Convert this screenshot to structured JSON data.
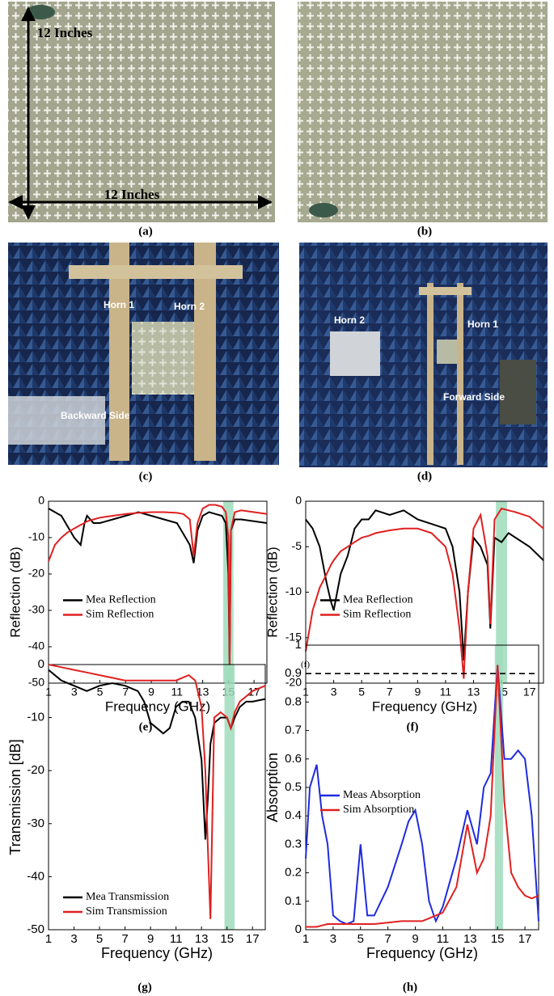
{
  "figures": [
    {
      "caption": "(a)",
      "labels": [
        "12 Inches",
        "12 Inches"
      ]
    },
    {
      "caption": "(b)"
    },
    {
      "caption": "(c)",
      "labels": [
        "Horn 1",
        "Horn 2",
        "Backward Side"
      ]
    },
    {
      "caption": "(d)",
      "labels": [
        "Horn 2",
        "Horn 1",
        "Forward Side"
      ]
    }
  ],
  "chart_data": [
    {
      "type": "line",
      "caption": "(e)",
      "xlabel": "Frequency (GHz)",
      "ylabel": "Reflection (dB)",
      "x": [
        1,
        1.5,
        2,
        2.5,
        3,
        3.5,
        3.8,
        4,
        4.5,
        5,
        6,
        7,
        8,
        9,
        10,
        11,
        11.5,
        12,
        12.3,
        12.6,
        13,
        13.5,
        14,
        14.5,
        14.8,
        15,
        15.1,
        15.2,
        15.5,
        16,
        17,
        18
      ],
      "series": [
        {
          "name": "Mea Reflection",
          "color": "#000000",
          "values": [
            -2,
            -3,
            -4,
            -7,
            -10,
            -12,
            -6,
            -4,
            -6,
            -6,
            -5,
            -4,
            -3,
            -4,
            -5,
            -6,
            -9,
            -12,
            -17,
            -8,
            -4,
            -3,
            -3.5,
            -4,
            -6,
            -20,
            -45,
            -8,
            -5,
            -5,
            -5.5,
            -6
          ]
        },
        {
          "name": "Sim Reflection",
          "color": "#e02020",
          "values": [
            -16.5,
            -12,
            -10,
            -8.5,
            -7.5,
            -6.5,
            -6,
            -5.5,
            -5,
            -4.5,
            -4,
            -3.5,
            -3.2,
            -3,
            -3,
            -3.2,
            -3.5,
            -5,
            -15,
            -6,
            -2,
            -1,
            -1,
            -1.5,
            -3,
            -10,
            -45,
            -8,
            -3,
            -2.5,
            -3,
            -3.5
          ]
        }
      ],
      "xlim": [
        1,
        18
      ],
      "xticks": [
        1,
        3,
        5,
        7,
        9,
        11,
        13,
        15,
        17
      ],
      "ylim": [
        -50,
        0
      ],
      "yticks": [
        -50,
        -40,
        -30,
        -20,
        -10,
        0
      ],
      "highlight": [
        14.6,
        15.4
      ],
      "highlight_color": "#9fdcbc",
      "legend": "center left"
    },
    {
      "type": "line",
      "caption": "(f)",
      "xlabel": "Frequency (GHz)",
      "ylabel": "Reflection (dB)",
      "annotation": "(f)",
      "x": [
        1,
        1.5,
        2,
        2.5,
        2.8,
        3,
        3.5,
        4,
        4.5,
        5,
        5.5,
        6,
        7,
        8,
        9,
        10,
        11,
        11.5,
        12,
        12.3,
        12.6,
        13,
        13.5,
        14,
        14.2,
        14.5,
        15,
        15.5,
        16,
        17,
        18
      ],
      "series": [
        {
          "name": "Mea Reflection",
          "color": "#000000",
          "values": [
            -2,
            -3,
            -5,
            -9,
            -11,
            -12,
            -8,
            -6,
            -3,
            -2,
            -2,
            -1,
            -1.5,
            -1,
            -2,
            -2.5,
            -3,
            -5,
            -10,
            -17.5,
            -10,
            -4,
            -5,
            -7,
            -14,
            -4,
            -4.5,
            -3.5,
            -4,
            -5,
            -6.5
          ]
        },
        {
          "name": "Sim Reflection",
          "color": "#e02020",
          "values": [
            -16.5,
            -12,
            -9.5,
            -8,
            -7,
            -6.5,
            -5.5,
            -5,
            -4.5,
            -4,
            -3.8,
            -3.5,
            -3.2,
            -3,
            -3,
            -3.5,
            -5,
            -8,
            -14,
            -19.5,
            -10,
            -3,
            -1.5,
            -6,
            -13.5,
            -2,
            -0.8,
            -1,
            -1.2,
            -1.7,
            -3
          ]
        }
      ],
      "xlim": [
        1,
        18
      ],
      "xticks": [
        1,
        3,
        5,
        7,
        9,
        11,
        13,
        15,
        17
      ],
      "ylim": [
        -20,
        0
      ],
      "yticks": [
        -20,
        -15,
        -10,
        -5,
        0
      ],
      "highlight": [
        14.6,
        15.4
      ],
      "highlight_color": "#9fdcbc",
      "legend": "center left"
    },
    {
      "type": "line",
      "caption": "(g)",
      "xlabel": "Frequency (GHz)",
      "ylabel": "Transmission [dB]",
      "x": [
        1,
        2,
        3,
        4,
        5,
        6,
        7,
        8,
        8.5,
        9,
        9.5,
        10,
        10.5,
        11,
        11.5,
        12,
        12.5,
        13,
        13.3,
        13.5,
        13.7,
        14,
        14.5,
        15,
        15.3,
        15.6,
        16,
        16.5,
        17,
        18
      ],
      "series": [
        {
          "name": "Mea Transmission",
          "color": "#000000",
          "values": [
            -1,
            -3,
            -4,
            -5,
            -4,
            -3.5,
            -4,
            -5,
            -7,
            -11,
            -12,
            -13,
            -12,
            -8,
            -7,
            -7,
            -10,
            -18,
            -33,
            -25,
            -15,
            -11,
            -10,
            -10,
            -12,
            -10,
            -8,
            -7,
            -7,
            -6.5
          ]
        },
        {
          "name": "Sim Transmission",
          "color": "#e02020",
          "values": [
            0,
            -0.5,
            -1,
            -1.5,
            -2,
            -2.5,
            -3,
            -3,
            -3,
            -3,
            -3,
            -3,
            -3,
            -3,
            -2.5,
            -2,
            -3,
            -8,
            -20,
            -35,
            -48,
            -10,
            -9,
            -10,
            -12,
            -9,
            -7,
            -6,
            -5,
            -4
          ]
        }
      ],
      "xlim": [
        1,
        18
      ],
      "xticks": [
        1,
        3,
        5,
        7,
        9,
        11,
        13,
        15,
        17
      ],
      "ylim": [
        -50,
        0
      ],
      "yticks": [
        -50,
        -40,
        -30,
        -20,
        -10,
        0
      ],
      "highlight": [
        14.8,
        15.6
      ],
      "highlight_color": "#9fdcbc",
      "legend": "lower left"
    },
    {
      "type": "line",
      "caption": "(h)",
      "xlabel": "Frequency (GHz)",
      "ylabel": "Absorption",
      "x": [
        1,
        1.3,
        1.8,
        2.2,
        2.6,
        3,
        3.5,
        4,
        4.5,
        5,
        5.5,
        6,
        7,
        8,
        8.5,
        9,
        9.5,
        10,
        10.5,
        11,
        12,
        12.8,
        13.5,
        14,
        14.5,
        15,
        15.5,
        16,
        16.5,
        17,
        17.5,
        18
      ],
      "series": [
        {
          "name": "Meas Absorption",
          "color": "#1f2be0",
          "values": [
            0.25,
            0.5,
            0.58,
            0.4,
            0.3,
            0.05,
            0.03,
            0.02,
            0.03,
            0.3,
            0.05,
            0.05,
            0.15,
            0.3,
            0.38,
            0.42,
            0.3,
            0.1,
            0.03,
            0.08,
            0.25,
            0.42,
            0.3,
            0.5,
            0.55,
            0.93,
            0.6,
            0.6,
            0.63,
            0.6,
            0.4,
            0.03
          ]
        },
        {
          "name": "Sim Absorption",
          "color": "#e02020",
          "values": [
            0.01,
            0.01,
            0.01,
            0.015,
            0.02,
            0.02,
            0.02,
            0.02,
            0.02,
            0.02,
            0.02,
            0.02,
            0.025,
            0.03,
            0.03,
            0.03,
            0.03,
            0.04,
            0.05,
            0.06,
            0.15,
            0.37,
            0.2,
            0.25,
            0.4,
            0.93,
            0.45,
            0.2,
            0.15,
            0.12,
            0.11,
            0.12
          ]
        }
      ],
      "xlim": [
        1,
        18
      ],
      "xticks": [
        1,
        3,
        5,
        7,
        9,
        11,
        13,
        15,
        17
      ],
      "ylim": [
        0,
        1
      ],
      "yticks": [
        0,
        0.1,
        0.2,
        0.3,
        0.4,
        0.5,
        0.6,
        0.7,
        0.8,
        0.9,
        1
      ],
      "threshold": 0.9,
      "highlight": [
        14.8,
        15.4
      ],
      "highlight_color": "#9fdcbc",
      "legend": "center left"
    }
  ]
}
